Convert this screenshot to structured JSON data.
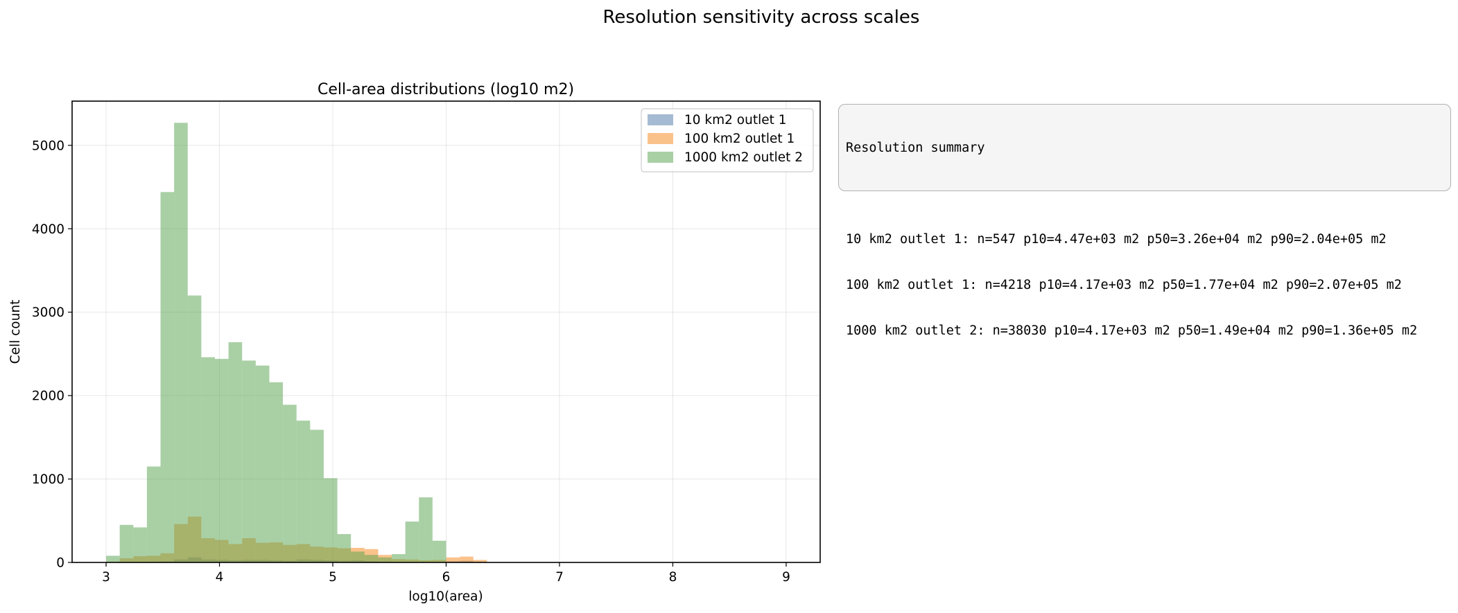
{
  "figure": {
    "suptitle": "Resolution sensitivity across scales"
  },
  "summary": {
    "title": "Resolution summary",
    "lines": [
      "10 km2 outlet 1: n=547 p10=4.47e+03 m2 p50=3.26e+04 m2 p90=2.04e+05 m2",
      "100 km2 outlet 1: n=4218 p10=4.17e+03 m2 p50=1.77e+04 m2 p90=2.07e+05 m2",
      "1000 km2 outlet 2: n=38030 p10=4.17e+03 m2 p50=1.49e+04 m2 p90=1.36e+05 m2"
    ]
  },
  "chart_data": {
    "type": "bar",
    "title": "Cell-area distributions (log10 m2)",
    "xlabel": "log10(area)",
    "ylabel": "Cell count",
    "xlim": [
      2.7,
      9.3
    ],
    "ylim": [
      0,
      5530
    ],
    "xticks": [
      3,
      4,
      5,
      6,
      7,
      8,
      9
    ],
    "yticks": [
      0,
      1000,
      2000,
      3000,
      4000,
      5000
    ],
    "grid": true,
    "legend_position": "top-right",
    "bin_edges": [
      3.0,
      3.12,
      3.24,
      3.36,
      3.48,
      3.6,
      3.72,
      3.84,
      3.96,
      4.08,
      4.2,
      4.32,
      4.44,
      4.56,
      4.68,
      4.8,
      4.92,
      5.04,
      5.16,
      5.28,
      5.4,
      5.52,
      5.64,
      5.76,
      5.88,
      6.0,
      6.12,
      6.24,
      6.36,
      6.48,
      6.6,
      6.72,
      6.84,
      6.96,
      7.08,
      7.2,
      7.32,
      7.44,
      7.56,
      7.68,
      7.8,
      7.92,
      8.04,
      8.16,
      8.28,
      8.4,
      8.52,
      8.64,
      8.76,
      8.88,
      9.0
    ],
    "series": [
      {
        "name": "10 km2 outlet 1",
        "color": "#4c78a8",
        "opacity": 0.5,
        "values": [
          0,
          5,
          8,
          9,
          12,
          35,
          60,
          35,
          30,
          25,
          30,
          30,
          25,
          20,
          35,
          30,
          25,
          20,
          25,
          15,
          10,
          8,
          5,
          3,
          5,
          15,
          20,
          10,
          0,
          0,
          0,
          0,
          0,
          0,
          0,
          0,
          0,
          0,
          0,
          0,
          0,
          0,
          0,
          0,
          0,
          0,
          0,
          0,
          0,
          0
        ]
      },
      {
        "name": "100 km2 outlet 1",
        "color": "#f58518",
        "opacity": 0.5,
        "values": [
          10,
          50,
          75,
          80,
          110,
          460,
          550,
          290,
          270,
          220,
          290,
          235,
          240,
          210,
          220,
          190,
          180,
          170,
          175,
          160,
          90,
          40,
          35,
          25,
          30,
          60,
          70,
          30,
          0,
          0,
          0,
          0,
          0,
          0,
          0,
          0,
          0,
          0,
          0,
          0,
          0,
          0,
          0,
          0,
          0,
          0,
          0,
          0,
          0,
          0
        ]
      },
      {
        "name": "1000 km2 outlet 2",
        "color": "#54a24b",
        "opacity": 0.5,
        "values": [
          80,
          450,
          420,
          1150,
          4440,
          5270,
          3200,
          2460,
          2440,
          2640,
          2420,
          2360,
          2160,
          1890,
          1700,
          1590,
          1010,
          340,
          130,
          90,
          60,
          100,
          490,
          780,
          260,
          0,
          0,
          0,
          0,
          0,
          0,
          0,
          0,
          0,
          0,
          0,
          0,
          0,
          0,
          0,
          0,
          0,
          0,
          0,
          0,
          0,
          0,
          0,
          0,
          0
        ]
      }
    ]
  }
}
